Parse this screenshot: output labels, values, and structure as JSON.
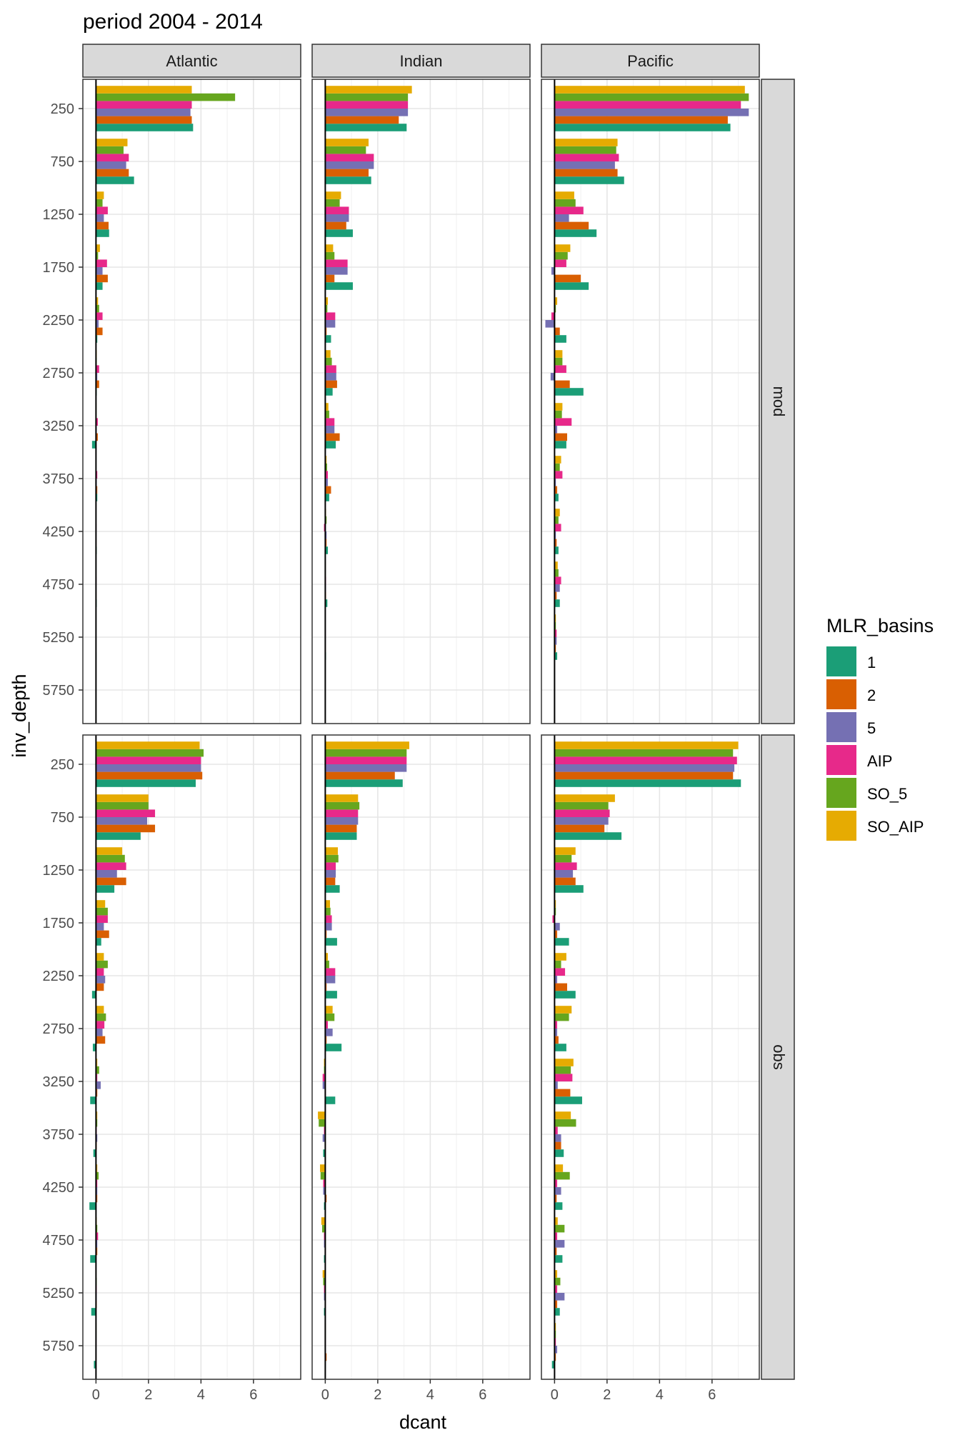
{
  "chart_data": {
    "type": "bar",
    "orientation": "horizontal",
    "title": "period 2004 - 2014",
    "xlabel": "dcant",
    "ylabel": "inv_depth",
    "xlim": [
      -0.5,
      7.8
    ],
    "x_ticks": [
      0,
      2,
      4,
      6
    ],
    "y_ticks": [
      250,
      750,
      1250,
      1750,
      2250,
      2750,
      3250,
      3750,
      4250,
      4750,
      5250,
      5750
    ],
    "grid": true,
    "legend": {
      "title": "MLR_basins",
      "position": "right"
    },
    "facet_cols": [
      "Atlantic",
      "Indian",
      "Pacific"
    ],
    "facet_rows": [
      "mod",
      "obs"
    ],
    "categories": [
      250,
      750,
      1250,
      1750,
      2250,
      2750,
      3250,
      3750,
      4250,
      4750,
      5250,
      5750
    ],
    "series": [
      {
        "name": "1",
        "color": "#1B9E77"
      },
      {
        "name": "2",
        "color": "#D95F02"
      },
      {
        "name": "5",
        "color": "#7570B3"
      },
      {
        "name": "AIP",
        "color": "#E7298A"
      },
      {
        "name": "SO_5",
        "color": "#66A61E"
      },
      {
        "name": "SO_AIP",
        "color": "#E6AB02"
      }
    ],
    "panels": [
      {
        "row": "mod",
        "col": "Atlantic",
        "values": {
          "1": [
            3.7,
            1.45,
            0.5,
            0.25,
            0.05,
            0.03,
            -0.15,
            0.05,
            0.03,
            0.03,
            0.02,
            0.0
          ],
          "2": [
            3.65,
            1.25,
            0.48,
            0.45,
            0.25,
            0.12,
            0.07,
            0.05,
            0.02,
            0.02,
            0.01,
            0.0
          ],
          "5": [
            3.6,
            1.15,
            0.3,
            0.25,
            0.1,
            0.05,
            0.03,
            0.03,
            0.02,
            0.02,
            0.01,
            0.0
          ],
          "AIP": [
            3.65,
            1.25,
            0.45,
            0.42,
            0.25,
            0.12,
            0.07,
            0.05,
            0.02,
            0.02,
            0.01,
            0.0
          ],
          "SO_5": [
            5.3,
            1.05,
            0.25,
            0.08,
            0.12,
            0.03,
            0.02,
            0.01,
            0.01,
            0.01,
            0.0,
            0.0
          ],
          "SO_AIP": [
            3.65,
            1.2,
            0.3,
            0.15,
            0.08,
            0.03,
            0.02,
            0.01,
            0.01,
            0.01,
            0.0,
            0.0
          ]
        }
      },
      {
        "row": "mod",
        "col": "Indian",
        "values": {
          "1": [
            3.1,
            1.75,
            1.05,
            1.05,
            0.22,
            0.28,
            0.4,
            0.15,
            0.1,
            0.08,
            0.03,
            0.0
          ],
          "2": [
            2.8,
            1.65,
            0.8,
            0.35,
            0.05,
            0.45,
            0.55,
            0.22,
            0.05,
            0.03,
            0.02,
            0.0
          ],
          "5": [
            3.15,
            1.85,
            0.9,
            0.85,
            0.38,
            0.42,
            0.35,
            0.1,
            0.05,
            0.03,
            0.02,
            0.0
          ],
          "AIP": [
            3.15,
            1.85,
            0.9,
            0.85,
            0.38,
            0.42,
            0.35,
            0.1,
            -0.05,
            0.03,
            0.02,
            0.0
          ],
          "SO_5": [
            3.15,
            1.55,
            0.55,
            0.35,
            0.08,
            0.25,
            0.15,
            0.07,
            0.05,
            0.02,
            0.01,
            0.0
          ],
          "SO_AIP": [
            3.3,
            1.65,
            0.6,
            0.3,
            0.1,
            0.2,
            0.12,
            0.05,
            0.03,
            0.02,
            0.01,
            0.0
          ]
        }
      },
      {
        "row": "mod",
        "col": "Pacific",
        "values": {
          "1": [
            6.7,
            2.65,
            1.6,
            1.3,
            0.45,
            1.1,
            0.45,
            0.15,
            0.15,
            0.2,
            0.1,
            0.0
          ],
          "2": [
            6.6,
            2.4,
            1.3,
            1.0,
            0.2,
            0.58,
            0.48,
            0.1,
            0.08,
            0.08,
            0.05,
            0.0
          ],
          "5": [
            7.4,
            2.3,
            0.55,
            -0.12,
            -0.35,
            -0.15,
            0.1,
            0.05,
            0.05,
            0.2,
            0.08,
            0.0
          ],
          "AIP": [
            7.1,
            2.45,
            1.1,
            0.45,
            -0.12,
            0.45,
            0.65,
            0.3,
            0.25,
            0.25,
            0.08,
            0.0
          ],
          "SO_5": [
            7.4,
            2.35,
            0.8,
            0.5,
            0.05,
            0.3,
            0.28,
            0.2,
            0.15,
            0.15,
            0.05,
            0.0
          ],
          "SO_AIP": [
            7.25,
            2.4,
            0.75,
            0.6,
            0.1,
            0.3,
            0.3,
            0.25,
            0.2,
            0.12,
            0.05,
            0.0
          ]
        }
      },
      {
        "row": "obs",
        "col": "Atlantic",
        "values": {
          "1": [
            3.8,
            1.7,
            0.7,
            0.2,
            -0.15,
            -0.12,
            -0.22,
            -0.1,
            -0.25,
            -0.22,
            -0.18,
            -0.08
          ],
          "2": [
            4.05,
            2.25,
            1.15,
            0.5,
            0.3,
            0.35,
            0.05,
            0.03,
            0.05,
            0.05,
            0.03,
            0.02
          ],
          "5": [
            4.0,
            1.95,
            0.8,
            0.3,
            0.35,
            0.25,
            0.18,
            0.05,
            0.05,
            0.05,
            0.03,
            0.02
          ],
          "AIP": [
            4.0,
            2.25,
            1.15,
            0.45,
            0.3,
            0.32,
            0.05,
            0.03,
            0.05,
            0.08,
            0.03,
            0.02
          ],
          "SO_5": [
            4.1,
            2.0,
            1.1,
            0.45,
            0.45,
            0.38,
            0.12,
            0.05,
            0.1,
            0.05,
            0.03,
            0.02
          ],
          "SO_AIP": [
            3.95,
            2.0,
            1.0,
            0.35,
            0.3,
            0.3,
            0.05,
            0.05,
            0.05,
            0.03,
            0.02,
            0.02
          ]
        }
      },
      {
        "row": "obs",
        "col": "Indian",
        "values": {
          "1": [
            2.95,
            1.2,
            0.55,
            0.45,
            0.45,
            0.62,
            0.38,
            -0.08,
            -0.05,
            -0.05,
            -0.05,
            0.02
          ],
          "2": [
            2.65,
            1.2,
            0.38,
            0.05,
            0.05,
            0.05,
            0.02,
            0.02,
            0.05,
            0.02,
            0.02,
            0.05
          ],
          "5": [
            3.1,
            1.25,
            0.4,
            0.25,
            0.38,
            0.28,
            -0.1,
            -0.1,
            -0.08,
            -0.05,
            -0.05,
            0.02
          ],
          "AIP": [
            3.1,
            1.25,
            0.4,
            0.25,
            0.38,
            0.1,
            -0.1,
            -0.05,
            -0.08,
            -0.05,
            -0.05,
            0.02
          ],
          "SO_5": [
            3.1,
            1.3,
            0.5,
            0.2,
            0.15,
            0.35,
            -0.05,
            -0.25,
            -0.18,
            -0.12,
            -0.08,
            0.02
          ],
          "SO_AIP": [
            3.2,
            1.25,
            0.48,
            0.18,
            0.1,
            0.28,
            -0.05,
            -0.28,
            -0.2,
            -0.15,
            -0.1,
            0.02
          ]
        }
      },
      {
        "row": "obs",
        "col": "Pacific",
        "values": {
          "1": [
            7.1,
            2.55,
            1.1,
            0.55,
            0.8,
            0.45,
            1.05,
            0.35,
            0.3,
            0.3,
            0.2,
            -0.1
          ],
          "2": [
            6.8,
            1.9,
            0.8,
            0.1,
            0.48,
            0.15,
            0.6,
            0.25,
            0.08,
            0.08,
            0.1,
            0.05
          ],
          "5": [
            6.85,
            2.05,
            0.7,
            0.2,
            0.1,
            0.1,
            0.12,
            0.25,
            0.25,
            0.38,
            0.38,
            0.1
          ],
          "AIP": [
            6.95,
            2.1,
            0.85,
            -0.08,
            0.4,
            0.1,
            0.68,
            0.12,
            0.1,
            0.1,
            0.1,
            0.05
          ],
          "SO_5": [
            6.8,
            2.05,
            0.65,
            0.05,
            0.25,
            0.55,
            0.62,
            0.82,
            0.58,
            0.38,
            0.22,
            0.05
          ],
          "SO_AIP": [
            7.0,
            2.3,
            0.8,
            0.05,
            0.45,
            0.65,
            0.72,
            0.62,
            0.32,
            0.12,
            0.1,
            0.05
          ]
        }
      }
    ]
  }
}
